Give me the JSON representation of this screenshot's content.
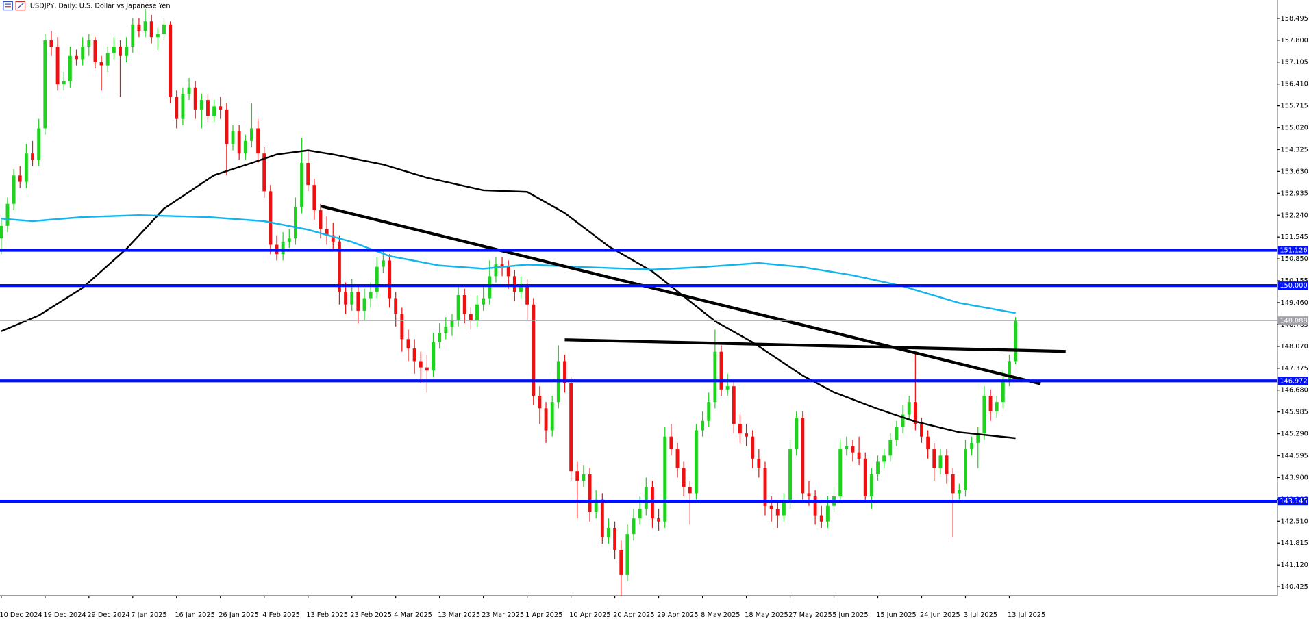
{
  "chart_data": {
    "type": "candlestick",
    "title": "USDJPY, Daily:  U.S. Dollar vs Japanese Yen",
    "up_color": "#1ed21e",
    "down_color": "#f01010",
    "ylim": [
      140.14,
      159.08
    ],
    "yticks": [
      158.495,
      {
        "value": 157.8,
        "label": "157.800"
      },
      157.105,
      {
        "value": 156.41,
        "label": "156.410"
      },
      155.715,
      {
        "value": 155.02,
        "label": "155.020"
      },
      154.325,
      {
        "value": 153.63,
        "label": "153.630"
      },
      152.935,
      {
        "value": 152.24,
        "label": "152.240"
      },
      151.545,
      {
        "value": 150.85,
        "label": "150.850"
      },
      150.155,
      {
        "value": 149.46,
        "label": "149.460"
      },
      148.765,
      {
        "value": 148.07,
        "label": "148.070"
      },
      147.375,
      {
        "value": 146.68,
        "label": "146.680"
      },
      145.985,
      {
        "value": 145.29,
        "label": "145.290"
      },
      144.595,
      {
        "value": 143.9,
        "label": "143.900"
      },
      143.205,
      {
        "value": 142.51,
        "label": "142.510"
      },
      141.815,
      {
        "value": 141.12,
        "label": "141.120"
      },
      140.425
    ],
    "categories": [
      "10 Dec 2024",
      null,
      null,
      null,
      null,
      null,
      null,
      "19 Dec 2024",
      null,
      null,
      null,
      null,
      null,
      null,
      "29 Dec 2024",
      null,
      null,
      null,
      null,
      null,
      null,
      "7 Jan 2025",
      null,
      null,
      null,
      null,
      null,
      null,
      "16 Jan 2025",
      null,
      null,
      null,
      null,
      null,
      null,
      "26 Jan 2025",
      null,
      null,
      null,
      null,
      null,
      null,
      "4 Feb 2025",
      null,
      null,
      null,
      null,
      null,
      null,
      "13 Feb 2025",
      null,
      null,
      null,
      null,
      null,
      null,
      "23 Feb 2025",
      null,
      null,
      null,
      null,
      null,
      null,
      "4 Mar 2025",
      null,
      null,
      null,
      null,
      null,
      null,
      "13 Mar 2025",
      null,
      null,
      null,
      null,
      null,
      null,
      "23 Mar 2025",
      null,
      null,
      null,
      null,
      null,
      null,
      "1 Apr 2025",
      null,
      null,
      null,
      null,
      null,
      null,
      "10 Apr 2025",
      null,
      null,
      null,
      null,
      null,
      null,
      "20 Apr 2025",
      null,
      null,
      null,
      null,
      null,
      null,
      "29 Apr 2025",
      null,
      null,
      null,
      null,
      null,
      null,
      "8 May 2025",
      null,
      null,
      null,
      null,
      null,
      null,
      "18 May 2025",
      null,
      null,
      null,
      null,
      null,
      null,
      "27 May 2025",
      null,
      null,
      null,
      null,
      null,
      null,
      "5 Jun 2025",
      null,
      null,
      null,
      null,
      null,
      null,
      "15 Jun 2025",
      null,
      null,
      null,
      null,
      null,
      null,
      "24 Jun 2025",
      null,
      null,
      null,
      null,
      null,
      null,
      "3 Jul 2025",
      null,
      null,
      null,
      null,
      null,
      null,
      "13 Jul 2025",
      null
    ],
    "candles": [
      [
        151.5,
        152.1,
        151.0,
        151.9
      ],
      [
        151.9,
        152.8,
        151.7,
        152.6
      ],
      [
        152.6,
        153.7,
        152.4,
        153.5
      ],
      [
        153.5,
        153.8,
        153.1,
        153.3
      ],
      [
        153.3,
        154.5,
        153.1,
        154.2
      ],
      [
        154.2,
        154.6,
        153.8,
        154.0
      ],
      [
        154.0,
        155.3,
        153.8,
        155.0
      ],
      [
        155.0,
        158.0,
        154.8,
        157.8
      ],
      [
        157.8,
        158.1,
        157.3,
        157.6
      ],
      [
        157.6,
        157.9,
        156.2,
        156.4
      ],
      [
        156.4,
        156.8,
        156.2,
        156.5
      ],
      [
        156.5,
        157.6,
        156.3,
        157.3
      ],
      [
        157.3,
        157.5,
        157.0,
        157.2
      ],
      [
        157.2,
        157.9,
        157.0,
        157.6
      ],
      [
        157.6,
        158.0,
        157.3,
        157.8
      ],
      [
        157.8,
        157.9,
        156.9,
        157.1
      ],
      [
        157.1,
        157.3,
        156.2,
        157.0
      ],
      [
        157.0,
        157.6,
        156.8,
        157.4
      ],
      [
        157.4,
        157.9,
        157.2,
        157.6
      ],
      [
        157.6,
        157.8,
        156.0,
        157.3
      ],
      [
        157.3,
        157.9,
        157.1,
        157.6
      ],
      [
        157.6,
        158.5,
        157.4,
        158.3
      ],
      [
        158.3,
        158.5,
        157.9,
        158.1
      ],
      [
        158.1,
        158.8,
        157.9,
        158.4
      ],
      [
        158.4,
        158.6,
        157.7,
        157.9
      ],
      [
        157.9,
        158.2,
        157.5,
        158.0
      ],
      [
        158.0,
        158.5,
        157.8,
        158.3
      ],
      [
        158.3,
        158.4,
        155.8,
        156.0
      ],
      [
        156.0,
        156.2,
        155.0,
        155.3
      ],
      [
        155.3,
        156.3,
        155.1,
        156.1
      ],
      [
        156.1,
        156.6,
        155.9,
        156.3
      ],
      [
        156.3,
        156.5,
        155.3,
        155.6
      ],
      [
        155.6,
        156.1,
        155.0,
        155.9
      ],
      [
        155.9,
        156.1,
        155.2,
        155.4
      ],
      [
        155.4,
        155.9,
        155.2,
        155.7
      ],
      [
        155.7,
        156.0,
        155.3,
        155.6
      ],
      [
        155.6,
        155.8,
        153.5,
        154.5
      ],
      [
        154.5,
        155.1,
        154.3,
        154.9
      ],
      [
        154.9,
        155.1,
        154.0,
        154.2
      ],
      [
        154.2,
        154.8,
        154.0,
        154.6
      ],
      [
        154.6,
        155.8,
        154.4,
        155.0
      ],
      [
        155.0,
        155.3,
        153.9,
        154.2
      ],
      [
        154.2,
        154.4,
        152.8,
        153.0
      ],
      [
        153.0,
        153.2,
        151.0,
        151.3
      ],
      [
        151.3,
        151.6,
        150.8,
        151.0
      ],
      [
        151.0,
        151.7,
        150.8,
        151.4
      ],
      [
        151.4,
        151.8,
        151.2,
        151.5
      ],
      [
        151.5,
        152.8,
        151.3,
        152.5
      ],
      [
        152.5,
        154.7,
        152.3,
        153.9
      ],
      [
        153.9,
        154.3,
        153.0,
        153.2
      ],
      [
        153.2,
        153.4,
        152.1,
        152.4
      ],
      [
        152.4,
        152.6,
        151.5,
        151.8
      ],
      [
        151.8,
        152.2,
        151.3,
        151.6
      ],
      [
        151.6,
        152.0,
        151.1,
        151.4
      ],
      [
        151.4,
        151.6,
        149.4,
        149.8
      ],
      [
        149.8,
        150.1,
        149.1,
        149.4
      ],
      [
        149.4,
        150.2,
        149.2,
        149.8
      ],
      [
        149.8,
        150.0,
        148.8,
        149.2
      ],
      [
        149.2,
        149.9,
        148.9,
        149.6
      ],
      [
        149.6,
        150.1,
        149.3,
        149.8
      ],
      [
        149.8,
        150.9,
        149.6,
        150.6
      ],
      [
        150.6,
        151.1,
        150.4,
        150.8
      ],
      [
        150.8,
        151.0,
        149.3,
        149.6
      ],
      [
        149.6,
        149.8,
        148.7,
        149.1
      ],
      [
        149.1,
        149.3,
        147.9,
        148.3
      ],
      [
        148.3,
        148.6,
        147.6,
        148.0
      ],
      [
        148.0,
        148.3,
        147.2,
        147.6
      ],
      [
        147.6,
        147.9,
        146.9,
        147.4
      ],
      [
        147.4,
        147.8,
        146.6,
        147.3
      ],
      [
        147.3,
        148.5,
        147.1,
        148.2
      ],
      [
        148.2,
        148.8,
        148.0,
        148.5
      ],
      [
        148.5,
        149.0,
        148.3,
        148.7
      ],
      [
        148.7,
        149.1,
        148.4,
        148.9
      ],
      [
        148.9,
        150.0,
        148.7,
        149.7
      ],
      [
        149.7,
        149.9,
        148.8,
        149.1
      ],
      [
        149.1,
        149.3,
        148.6,
        148.9
      ],
      [
        148.9,
        149.7,
        148.7,
        149.4
      ],
      [
        149.4,
        150.0,
        149.2,
        149.6
      ],
      [
        149.6,
        150.8,
        149.4,
        150.3
      ],
      [
        150.3,
        150.9,
        150.1,
        150.7
      ],
      [
        150.7,
        150.9,
        150.3,
        150.6
      ],
      [
        150.6,
        150.8,
        149.9,
        150.3
      ],
      [
        150.3,
        150.5,
        149.5,
        149.8
      ],
      [
        149.8,
        150.3,
        149.6,
        150.0
      ],
      [
        150.0,
        150.2,
        148.9,
        149.4
      ],
      [
        149.4,
        149.6,
        146.2,
        146.5
      ],
      [
        146.5,
        146.8,
        145.6,
        146.1
      ],
      [
        146.1,
        146.3,
        145.0,
        145.4
      ],
      [
        145.4,
        146.5,
        145.2,
        146.3
      ],
      [
        146.3,
        148.1,
        146.1,
        147.6
      ],
      [
        147.6,
        147.8,
        146.6,
        146.9
      ],
      [
        146.9,
        147.1,
        143.8,
        144.1
      ],
      [
        144.1,
        144.4,
        142.6,
        143.8
      ],
      [
        143.8,
        144.3,
        143.6,
        144.0
      ],
      [
        144.0,
        144.2,
        142.5,
        142.8
      ],
      [
        142.8,
        143.5,
        142.6,
        143.2
      ],
      [
        143.2,
        143.4,
        141.8,
        142.0
      ],
      [
        142.0,
        142.6,
        141.8,
        142.3
      ],
      [
        142.3,
        142.5,
        141.3,
        141.6
      ],
      [
        141.6,
        141.9,
        140.0,
        140.8
      ],
      [
        140.8,
        142.4,
        140.6,
        142.1
      ],
      [
        142.1,
        142.9,
        141.9,
        142.6
      ],
      [
        142.6,
        143.3,
        142.4,
        142.9
      ],
      [
        142.9,
        143.9,
        142.7,
        143.6
      ],
      [
        143.6,
        143.8,
        142.3,
        142.6
      ],
      [
        142.6,
        142.9,
        142.2,
        142.5
      ],
      [
        142.5,
        145.5,
        142.3,
        145.2
      ],
      [
        145.2,
        145.6,
        144.6,
        144.8
      ],
      [
        144.8,
        145.0,
        143.9,
        144.2
      ],
      [
        144.2,
        144.4,
        143.3,
        143.6
      ],
      [
        143.6,
        143.8,
        142.4,
        143.4
      ],
      [
        143.4,
        145.6,
        143.2,
        145.4
      ],
      [
        145.4,
        146.0,
        145.2,
        145.7
      ],
      [
        145.7,
        146.6,
        145.5,
        146.3
      ],
      [
        146.3,
        148.6,
        146.1,
        147.9
      ],
      [
        147.9,
        148.1,
        146.5,
        146.7
      ],
      [
        146.7,
        147.2,
        146.5,
        146.8
      ],
      [
        146.8,
        147.0,
        145.3,
        145.6
      ],
      [
        145.6,
        145.9,
        145.0,
        145.3
      ],
      [
        145.3,
        145.6,
        144.9,
        145.2
      ],
      [
        145.2,
        145.4,
        144.2,
        144.5
      ],
      [
        144.5,
        144.8,
        143.9,
        144.2
      ],
      [
        144.2,
        144.4,
        142.7,
        143.0
      ],
      [
        143.0,
        143.3,
        142.5,
        142.9
      ],
      [
        142.9,
        143.1,
        142.3,
        142.7
      ],
      [
        142.7,
        143.4,
        142.5,
        143.1
      ],
      [
        143.1,
        145.1,
        142.9,
        144.8
      ],
      [
        144.8,
        146.0,
        144.6,
        145.8
      ],
      [
        145.8,
        146.0,
        143.2,
        143.4
      ],
      [
        143.4,
        143.8,
        143.0,
        143.3
      ],
      [
        143.3,
        143.5,
        142.4,
        142.7
      ],
      [
        142.7,
        143.0,
        142.3,
        142.5
      ],
      [
        142.5,
        143.3,
        142.3,
        143.0
      ],
      [
        143.0,
        143.6,
        142.8,
        143.3
      ],
      [
        143.3,
        145.1,
        143.1,
        144.8
      ],
      [
        144.8,
        145.2,
        144.6,
        144.9
      ],
      [
        144.9,
        145.1,
        144.4,
        144.7
      ],
      [
        144.7,
        145.2,
        144.3,
        144.5
      ],
      [
        144.5,
        144.7,
        143.1,
        143.3
      ],
      [
        143.3,
        144.2,
        142.9,
        144.0
      ],
      [
        144.0,
        144.6,
        143.8,
        144.4
      ],
      [
        144.4,
        144.8,
        144.2,
        144.6
      ],
      [
        144.6,
        145.3,
        144.4,
        145.1
      ],
      [
        145.1,
        145.7,
        144.9,
        145.5
      ],
      [
        145.5,
        146.2,
        145.3,
        145.9
      ],
      [
        145.9,
        146.5,
        145.7,
        146.3
      ],
      [
        146.3,
        147.9,
        145.4,
        145.6
      ],
      [
        145.6,
        145.8,
        145.0,
        145.2
      ],
      [
        145.2,
        145.4,
        144.5,
        144.8
      ],
      [
        144.8,
        145.0,
        143.8,
        144.2
      ],
      [
        144.2,
        144.8,
        144.0,
        144.6
      ],
      [
        144.6,
        144.8,
        143.7,
        144.0
      ],
      [
        144.0,
        144.2,
        142.0,
        143.4
      ],
      [
        143.4,
        143.7,
        143.2,
        143.5
      ],
      [
        143.5,
        145.1,
        143.3,
        144.8
      ],
      [
        144.8,
        145.2,
        144.6,
        145.0
      ],
      [
        145.0,
        145.5,
        144.2,
        145.3
      ],
      [
        145.3,
        146.8,
        145.1,
        146.5
      ],
      [
        146.5,
        146.7,
        145.7,
        146.0
      ],
      [
        146.0,
        146.5,
        145.8,
        146.3
      ],
      [
        146.3,
        147.3,
        146.1,
        147.0
      ],
      [
        147.0,
        147.8,
        146.8,
        147.6
      ],
      [
        147.6,
        149.0,
        147.5,
        148.888
      ]
    ],
    "moving_averages": [
      {
        "color": "#000000",
        "x": [
          0,
          6,
          13,
          20,
          26,
          34,
          40,
          44,
          49,
          53,
          61,
          68,
          77,
          84,
          90,
          97,
          104,
          109,
          114,
          120,
          128,
          133,
          140,
          146,
          153,
          162
        ],
        "values": [
          148.55,
          149.05,
          149.93,
          151.17,
          152.45,
          153.51,
          153.9,
          154.17,
          154.3,
          154.17,
          153.85,
          153.43,
          153.03,
          152.98,
          152.31,
          151.25,
          150.45,
          149.66,
          148.87,
          148.2,
          147.14,
          146.61,
          146.08,
          145.68,
          145.34,
          145.15
        ]
      },
      {
        "color": "#12b4ee",
        "x": [
          0,
          5,
          13,
          22,
          33,
          42,
          49,
          56,
          62,
          70,
          77,
          84,
          93,
          104,
          112,
          121,
          128,
          136,
          144,
          153,
          162
        ],
        "values": [
          152.13,
          152.05,
          152.18,
          152.24,
          152.18,
          152.05,
          151.78,
          151.39,
          150.94,
          150.64,
          150.54,
          150.67,
          150.59,
          150.51,
          150.59,
          150.72,
          150.59,
          150.33,
          149.98,
          149.45,
          149.13
        ]
      }
    ],
    "trendlines": [
      {
        "x": [
          51,
          166
        ],
        "values": [
          152.53,
          146.88
        ]
      },
      {
        "x": [
          90,
          170
        ],
        "values": [
          148.28,
          147.91
        ]
      }
    ],
    "levels": [
      151.126,
      {
        "value": 150,
        "label": "150.000"
      },
      146.972,
      143.145
    ],
    "level_color": "#0010ff",
    "current_price": 148.888
  }
}
